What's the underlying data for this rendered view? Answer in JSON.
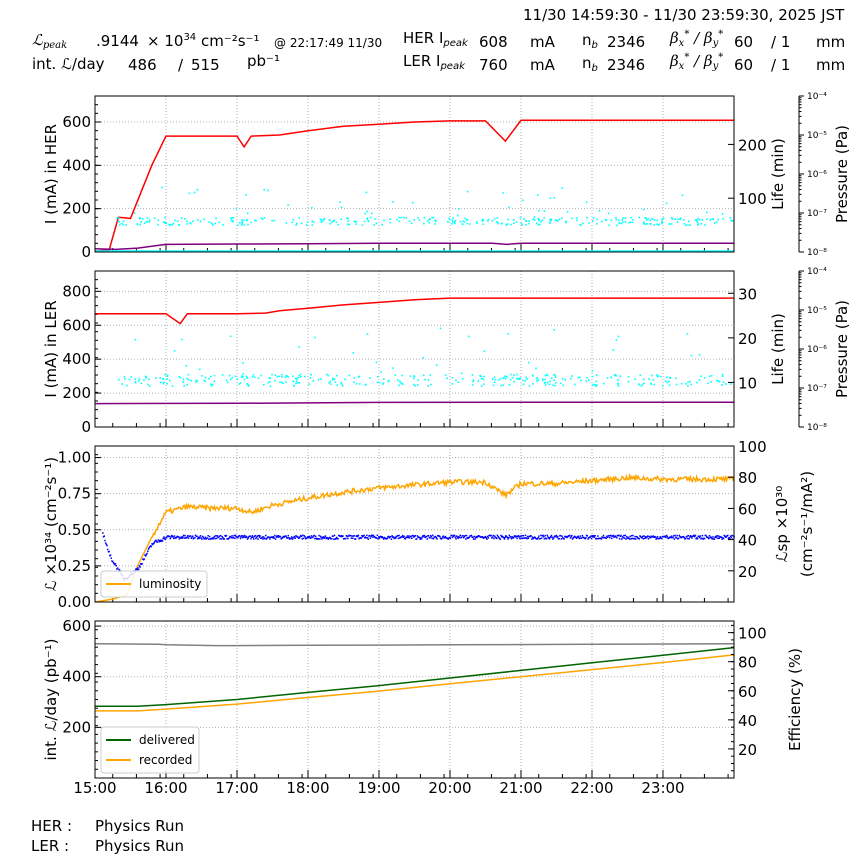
{
  "header": {
    "time_range": "11/30 14:59:30 - 11/30 23:59:30, 2025 JST",
    "lpeak_label": "ℒpeak",
    "lpeak_value": ".9144",
    "lpeak_unit_prefix": "× 10",
    "lpeak_exp": "34",
    "lpeak_unit": "cm⁻²s⁻¹",
    "lpeak_time": "@ 22:17:49 11/30",
    "intl_label": "int. ℒ/day",
    "intl_recorded": "486",
    "intl_sep": "/",
    "intl_delivered": "515",
    "intl_unit": "pb⁻¹",
    "her": {
      "label": "HER I",
      "sub": "peak",
      "current": "608",
      "unit": "mA",
      "nb_label": "n",
      "nb_sub": "b",
      "nb": "2346",
      "beta_label": "βx* / βy*",
      "beta_x": "60",
      "beta_y": "/ 1",
      "beta_unit": "mm"
    },
    "ler": {
      "label": "LER I",
      "sub": "peak",
      "current": "760",
      "unit": "mA",
      "nb_label": "n",
      "nb_sub": "b",
      "nb": "2346",
      "beta_label": "βx* / βy*",
      "beta_x": "60",
      "beta_y": "/ 1",
      "beta_unit": "mm"
    }
  },
  "footer": {
    "her_label": "HER :",
    "her_status": "Physics Run",
    "ler_label": "LER :",
    "ler_status": "Physics Run"
  },
  "colors": {
    "current": "#ff0000",
    "pressure": "#00ffff",
    "life": "#800080",
    "luminosity": "#ffa500",
    "specific": "#0000ff",
    "delivered": "#006400",
    "recorded": "#ffa500",
    "efficiency": "#808080",
    "grid": "#b0b0b0"
  },
  "chart_data": [
    {
      "type": "line",
      "title": "HER",
      "x": [
        "15:00",
        "16:00",
        "17:00",
        "18:00",
        "19:00",
        "20:00",
        "21:00",
        "22:00",
        "23:00"
      ],
      "xlabel": "",
      "ylabel": "I (mA) in HER",
      "ylim": [
        0,
        720
      ],
      "yticks": [
        0,
        200,
        400,
        600
      ],
      "y2label": "Life (min)",
      "y2ticks": [
        100,
        200
      ],
      "y3label": "Pressure (Pa)",
      "y3ticks": [
        "10⁻⁸",
        "10⁻⁷",
        "10⁻⁶",
        "10⁻⁵",
        "10⁻⁴"
      ],
      "series": [
        {
          "name": "HER current",
          "axis": "left",
          "points": [
            [
              15.0,
              3
            ],
            [
              15.2,
              10
            ],
            [
              15.33,
              160
            ],
            [
              15.5,
              155
            ],
            [
              15.8,
              400
            ],
            [
              16.0,
              535
            ],
            [
              16.6,
              535
            ],
            [
              17.0,
              535
            ],
            [
              17.1,
              485
            ],
            [
              17.2,
              535
            ],
            [
              17.6,
              540
            ],
            [
              18.0,
              560
            ],
            [
              18.5,
              580
            ],
            [
              19.0,
              590
            ],
            [
              19.5,
              600
            ],
            [
              20.0,
              605
            ],
            [
              20.5,
              605
            ],
            [
              20.78,
              512
            ],
            [
              21.0,
              608
            ],
            [
              22.0,
              608
            ],
            [
              23.0,
              608
            ],
            [
              24.0,
              608
            ]
          ]
        },
        {
          "name": "HER life",
          "axis": "left",
          "points": [
            [
              15.0,
              15
            ],
            [
              15.3,
              12
            ],
            [
              15.6,
              18
            ],
            [
              16.0,
              35
            ],
            [
              17.0,
              37
            ],
            [
              18.0,
              38
            ],
            [
              19.0,
              40
            ],
            [
              20.0,
              40
            ],
            [
              20.6,
              40
            ],
            [
              20.8,
              35
            ],
            [
              21.0,
              40
            ],
            [
              22.0,
              40
            ],
            [
              24.0,
              40
            ]
          ]
        },
        {
          "name": "HER pressure",
          "axis": "left",
          "style": "scatter",
          "typical": 145
        }
      ]
    },
    {
      "type": "line",
      "title": "LER",
      "x": [
        "15:00",
        "16:00",
        "17:00",
        "18:00",
        "19:00",
        "20:00",
        "21:00",
        "22:00",
        "23:00"
      ],
      "ylabel": "I (mA) in LER",
      "ylim": [
        0,
        920
      ],
      "yticks": [
        0,
        200,
        400,
        600,
        800
      ],
      "y2label": "Life (min)",
      "y2ticks": [
        10,
        20,
        30
      ],
      "y3label": "Pressure (Pa)",
      "y3ticks": [
        "10⁻⁸",
        "10⁻⁷",
        "10⁻⁶",
        "10⁻⁵",
        "10⁻⁴"
      ],
      "series": [
        {
          "name": "LER current",
          "axis": "left",
          "points": [
            [
              15.0,
              668
            ],
            [
              16.0,
              668
            ],
            [
              16.2,
              610
            ],
            [
              16.3,
              668
            ],
            [
              17.0,
              668
            ],
            [
              17.4,
              672
            ],
            [
              17.6,
              685
            ],
            [
              18.0,
              700
            ],
            [
              18.5,
              720
            ],
            [
              19.0,
              735
            ],
            [
              19.5,
              750
            ],
            [
              20.0,
              760
            ],
            [
              21.0,
              760
            ],
            [
              22.0,
              760
            ],
            [
              23.0,
              760
            ],
            [
              24.0,
              760
            ]
          ]
        },
        {
          "name": "LER life",
          "axis": "left",
          "points": [
            [
              15.0,
              138
            ],
            [
              17.0,
              140
            ],
            [
              19.0,
              145
            ],
            [
              21.0,
              146
            ],
            [
              24.0,
              146
            ]
          ]
        },
        {
          "name": "LER pressure",
          "axis": "left",
          "style": "scatter",
          "typical": 280
        }
      ]
    },
    {
      "type": "line",
      "title": "Luminosity",
      "x": [
        "15:00",
        "16:00",
        "17:00",
        "18:00",
        "19:00",
        "20:00",
        "21:00",
        "22:00",
        "23:00"
      ],
      "ylabel": "ℒ ×10³⁴ (cm⁻²s⁻¹)",
      "ylim": [
        0,
        1.08
      ],
      "yticks": [
        "0.00",
        "0.25",
        "0.50",
        "0.75",
        "1.00"
      ],
      "y2label": "ℒsp ×10³⁰ (cm⁻²s⁻¹/mA²)",
      "y2lim": [
        0,
        100
      ],
      "y2ticks": [
        20,
        40,
        60,
        80,
        100
      ],
      "legend": [
        "luminosity"
      ],
      "series": [
        {
          "name": "luminosity",
          "axis": "left",
          "points": [
            [
              15.0,
              0.0
            ],
            [
              15.25,
              0.02
            ],
            [
              15.45,
              0.05
            ],
            [
              15.6,
              0.25
            ],
            [
              15.8,
              0.45
            ],
            [
              16.0,
              0.62
            ],
            [
              16.3,
              0.66
            ],
            [
              16.6,
              0.65
            ],
            [
              17.0,
              0.65
            ],
            [
              17.2,
              0.62
            ],
            [
              17.5,
              0.67
            ],
            [
              18.0,
              0.72
            ],
            [
              18.5,
              0.76
            ],
            [
              19.0,
              0.79
            ],
            [
              19.5,
              0.81
            ],
            [
              20.0,
              0.83
            ],
            [
              20.5,
              0.83
            ],
            [
              20.78,
              0.74
            ],
            [
              21.0,
              0.82
            ],
            [
              21.5,
              0.82
            ],
            [
              22.0,
              0.84
            ],
            [
              22.5,
              0.86
            ],
            [
              23.0,
              0.85
            ],
            [
              24.0,
              0.85
            ]
          ]
        },
        {
          "name": "specific luminosity",
          "axis": "right",
          "style": "scatter",
          "points": [
            [
              15.1,
              45
            ],
            [
              15.2,
              30
            ],
            [
              15.4,
              15
            ],
            [
              15.6,
              22
            ],
            [
              15.8,
              38
            ],
            [
              16.0,
              42
            ],
            [
              17.0,
              42
            ],
            [
              18.0,
              42
            ],
            [
              19.0,
              42
            ],
            [
              20.0,
              42
            ],
            [
              21.0,
              42
            ],
            [
              22.0,
              42
            ],
            [
              23.0,
              42
            ],
            [
              24.0,
              42
            ]
          ]
        }
      ]
    },
    {
      "type": "line",
      "title": "Integrated luminosity",
      "x": [
        "15:00",
        "16:00",
        "17:00",
        "18:00",
        "19:00",
        "20:00",
        "21:00",
        "22:00",
        "23:00"
      ],
      "xlabel": "",
      "ylabel": "int. ℒ/day (pb⁻¹)",
      "ylim": [
        0,
        620
      ],
      "yticks": [
        200,
        400,
        600
      ],
      "y2label": "Efficiency (%)",
      "y2lim": [
        0,
        108
      ],
      "y2ticks": [
        20,
        40,
        60,
        80,
        100
      ],
      "legend": [
        "delivered",
        "recorded"
      ],
      "series": [
        {
          "name": "delivered",
          "axis": "left",
          "points": [
            [
              15.0,
              283
            ],
            [
              15.6,
              283
            ],
            [
              16.0,
              290
            ],
            [
              17.0,
              310
            ],
            [
              18.0,
              338
            ],
            [
              19.0,
              365
            ],
            [
              20.0,
              395
            ],
            [
              21.0,
              425
            ],
            [
              22.0,
              455
            ],
            [
              23.0,
              485
            ],
            [
              24.0,
              515
            ]
          ]
        },
        {
          "name": "recorded",
          "axis": "left",
          "points": [
            [
              15.0,
              265
            ],
            [
              15.6,
              265
            ],
            [
              16.0,
              272
            ],
            [
              17.0,
              292
            ],
            [
              18.0,
              318
            ],
            [
              19.0,
              343
            ],
            [
              20.0,
              372
            ],
            [
              21.0,
              400
            ],
            [
              22.0,
              428
            ],
            [
              23.0,
              456
            ],
            [
              24.0,
              486
            ]
          ]
        },
        {
          "name": "efficiency",
          "axis": "left",
          "points": [
            [
              15.0,
              530
            ],
            [
              15.9,
              528
            ],
            [
              16.0,
              526
            ],
            [
              16.7,
              523
            ],
            [
              17.0,
              523
            ],
            [
              18.0,
              524
            ],
            [
              19.0,
              525
            ],
            [
              20.0,
              526
            ],
            [
              22.0,
              528
            ],
            [
              24.0,
              530
            ]
          ]
        }
      ]
    }
  ]
}
